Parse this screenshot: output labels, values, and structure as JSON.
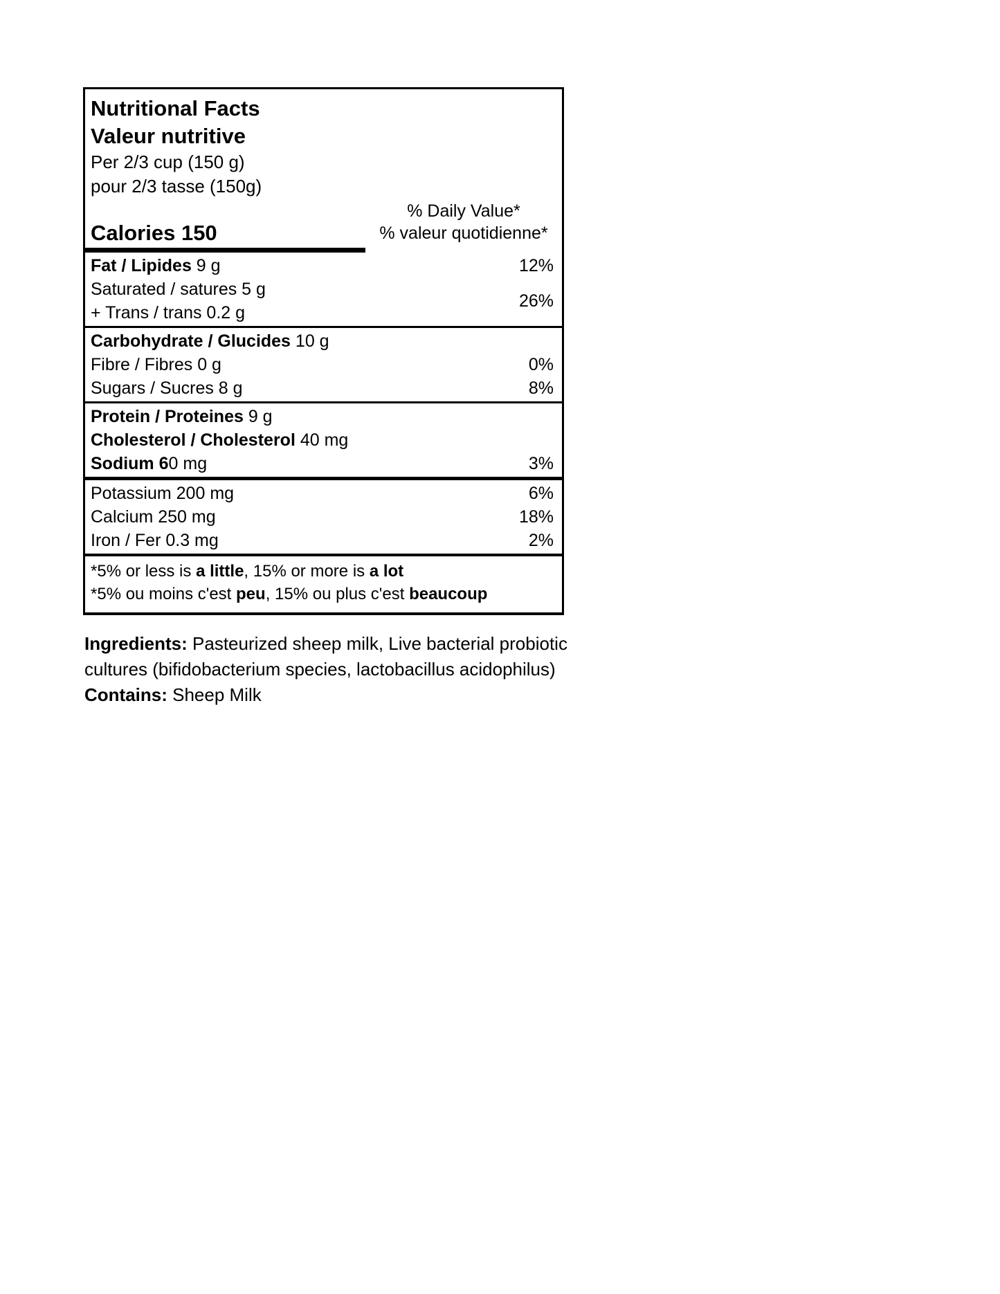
{
  "colors": {
    "text": "#000000",
    "background": "#ffffff",
    "rule": "#000000"
  },
  "nutrition_table": {
    "title_en": "Nutritional Facts",
    "title_fr": "Valeur nutritive",
    "serving_en": "Per 2/3 cup (150 g)",
    "serving_fr": "pour 2/3 tasse (150g)",
    "calories": "Calories 150",
    "daily_value_en": "% Daily Value*",
    "daily_value_fr": "% valeur quotidienne*",
    "rows": [
      {
        "label_bold": "Fat / Lipides",
        "label_rest": " 9 g",
        "dv": "12%"
      },
      {
        "label_bold": "",
        "label_rest": "Saturated / satures 5 g",
        "dv": ""
      },
      {
        "label_bold": "",
        "label_rest": "+ Trans / trans 0.2 g",
        "dv": ""
      },
      {
        "label_bold": "Carbohydrate / Glucides",
        "label_rest": " 10 g",
        "dv": ""
      },
      {
        "label_bold": "",
        "label_rest": "Fibre / Fibres 0 g",
        "dv": "0%"
      },
      {
        "label_bold": "",
        "label_rest": "Sugars / Sucres 8 g",
        "dv": "8%"
      },
      {
        "label_bold": "Protein / Proteines",
        "label_rest": " 9 g",
        "dv": ""
      },
      {
        "label_bold": "Cholesterol / Cholesterol",
        "label_rest": " 40 mg",
        "dv": ""
      },
      {
        "label_bold": "Sodium 6",
        "label_rest": "0 mg",
        "dv": "3%"
      },
      {
        "label_bold": "",
        "label_rest": "Potassium 200 mg",
        "dv": "6%"
      },
      {
        "label_bold": "",
        "label_rest": "Calcium 250 mg",
        "dv": "18%"
      },
      {
        "label_bold": "",
        "label_rest": "Iron / Fer 0.3 mg",
        "dv": "2%"
      }
    ],
    "saturated_trans_dv": "26%",
    "footnote_en": [
      {
        "t": "*5% or less is "
      },
      {
        "t": "a little",
        "b": true
      },
      {
        "t": ", 15% or more is "
      },
      {
        "t": "a lot",
        "b": true
      }
    ],
    "footnote_fr": [
      {
        "t": "*5% ou moins c'est "
      },
      {
        "t": "peu",
        "b": true
      },
      {
        "t": ", 15% ou plus c'est "
      },
      {
        "t": "beaucoup",
        "b": true
      }
    ]
  },
  "ingredients": {
    "line1": [
      {
        "t": "Ingredients:",
        "b": true
      },
      {
        "t": " Pasteurized sheep milk, Live bacterial probiotic"
      }
    ],
    "line2": [
      {
        "t": "cultures (bifidobacterium species, lactobacillus acidophilus)"
      }
    ],
    "line3": [
      {
        "t": "Contains:",
        "b": true
      },
      {
        "t": " Sheep Milk"
      }
    ]
  }
}
